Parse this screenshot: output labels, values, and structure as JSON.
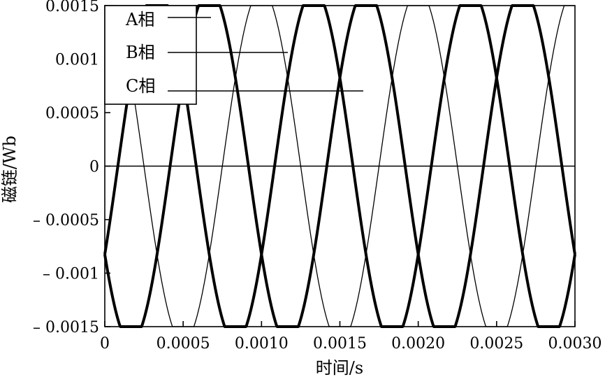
{
  "chart_data": {
    "type": "line",
    "xlabel": "时间/s",
    "ylabel": "磁链/Wb",
    "xlim": [
      0,
      0.003
    ],
    "ylim": [
      -0.0015,
      0.0015
    ],
    "x_ticks": [
      0,
      0.0005,
      0.001,
      0.0015,
      0.002,
      0.0025,
      0.003
    ],
    "x_tick_labels": [
      "0",
      "0.0005",
      "0.0010",
      "0.0015",
      "0.0020",
      "0.0025",
      "0.0030"
    ],
    "y_ticks": [
      0.0015,
      0.001,
      0.0005,
      0,
      -0.0005,
      -0.001,
      -0.0015
    ],
    "y_tick_labels": [
      "0.0015",
      "0.001",
      "0.0005",
      "0",
      "– 0.0005",
      "– 0.001",
      "– 0.0015"
    ],
    "zero_line": true,
    "grid": false,
    "legend_position": "top-left",
    "series_model": "flat-topped sinusoid clipped at ±0.0015",
    "peak": 0.0015,
    "amplitude": 0.00165,
    "period": 0.001,
    "series": [
      {
        "name": "A相",
        "phase_deg": 90,
        "color": "#000000",
        "line_weight": "thin"
      },
      {
        "name": "B相",
        "phase_deg": -30,
        "color": "#000000",
        "line_weight": "thick"
      },
      {
        "name": "C相",
        "phase_deg": 210,
        "color": "#000000",
        "line_weight": "thick"
      }
    ]
  }
}
